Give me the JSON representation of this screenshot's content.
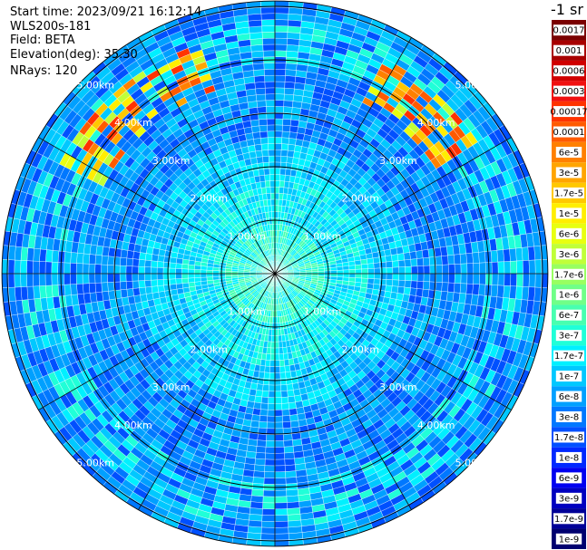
{
  "info": {
    "start_time": "Start time: 2023/09/21 16:12:14",
    "instrument": "WLS200s-181",
    "field": "Field: BETA",
    "elevation": "Elevation(deg): 35.30",
    "nrays": "NRays: 120"
  },
  "chart_data": {
    "type": "heatmap",
    "subtype": "polar-ppi",
    "range_rings_km": [
      1,
      2,
      3,
      4,
      5
    ],
    "ring_labels": [
      "1.00km",
      "2.00km",
      "3.00km",
      "4.00km",
      "5.00km"
    ],
    "max_range_km": 5.1,
    "nrays": 120,
    "spokes": 12,
    "colorbar": {
      "unit": "-1 sr",
      "labels": [
        "0.0017",
        "0.001",
        "0.0006",
        "0.0003",
        "0.00017",
        "0.0001",
        "6e-5",
        "3e-5",
        "1.7e-5",
        "1e-5",
        "6e-6",
        "3e-6",
        "1.7e-6",
        "1e-6",
        "6e-7",
        "3e-7",
        "1.7e-7",
        "1e-7",
        "6e-8",
        "3e-8",
        "1.7e-8",
        "1e-8",
        "6e-9",
        "3e-9",
        "1.7e-9",
        "1e-9"
      ],
      "colors": [
        "#7a0000",
        "#a80000",
        "#d00000",
        "#f01010",
        "#ff3300",
        "#ff5a00",
        "#ff8000",
        "#ffa500",
        "#ffc800",
        "#ffee00",
        "#e8ff10",
        "#c0ff38",
        "#98ff60",
        "#70ff88",
        "#48ffb0",
        "#20ffd8",
        "#00f0ff",
        "#00c8ff",
        "#00a0ff",
        "#0078ff",
        "#0050ff",
        "#0028ff",
        "#0000f0",
        "#0000c0",
        "#000098",
        "#000070"
      ]
    },
    "features": {
      "aerosol_ring_km": [
        3.9,
        4.7
      ],
      "high_value_sectors": [
        "north-west",
        "north-east"
      ]
    }
  }
}
